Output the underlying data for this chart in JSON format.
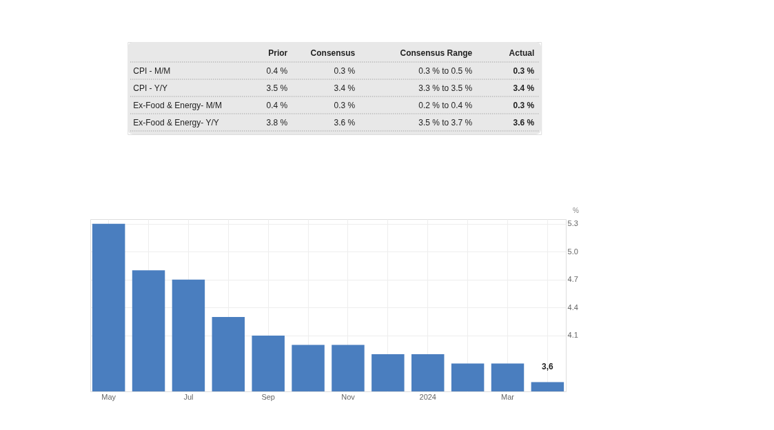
{
  "chart_data": [
    {
      "type": "other",
      "annotations": [
        "Prior",
        "Consensus",
        "Consensus Range",
        "Actual",
        "CPI - M/M",
        "0.4 %",
        "0.3 %",
        "0.3 % to 0.5 %",
        "0.3 %",
        "CPI - Y/Y",
        "3.5 %",
        "3.4 %",
        "3.3 % to 3.5 %",
        "3.4 %",
        "Ex-Food & Energy- M/M",
        "0.4 %",
        "0.3 %",
        "0.2 % to 0.4 %",
        "0.3 %",
        "Ex-Food & Energy- Y/Y",
        "3.8 %",
        "3.6 %",
        "3.5 % to 3.7 %",
        "3.6 %"
      ]
    },
    {
      "type": "bar",
      "ylabel": "%",
      "categories": [
        "May",
        null,
        "Jul",
        null,
        "Sep",
        null,
        "Nov",
        null,
        "2024",
        null,
        "Mar",
        null
      ],
      "values": [
        5.3,
        4.8,
        4.7,
        4.3,
        4.1,
        4.0,
        4.0,
        3.9,
        3.9,
        3.8,
        3.8,
        3.6
      ],
      "value_labels": [
        null,
        null,
        null,
        null,
        null,
        null,
        null,
        null,
        null,
        null,
        null,
        "3,6"
      ],
      "color": "#4a7ebf",
      "ylim": [
        3.5,
        5.35
      ],
      "yticks": [
        4.1,
        4.4,
        4.7,
        {
          "value": 5,
          "label": "5.0"
        },
        5.3
      ],
      "grid": true
    }
  ]
}
